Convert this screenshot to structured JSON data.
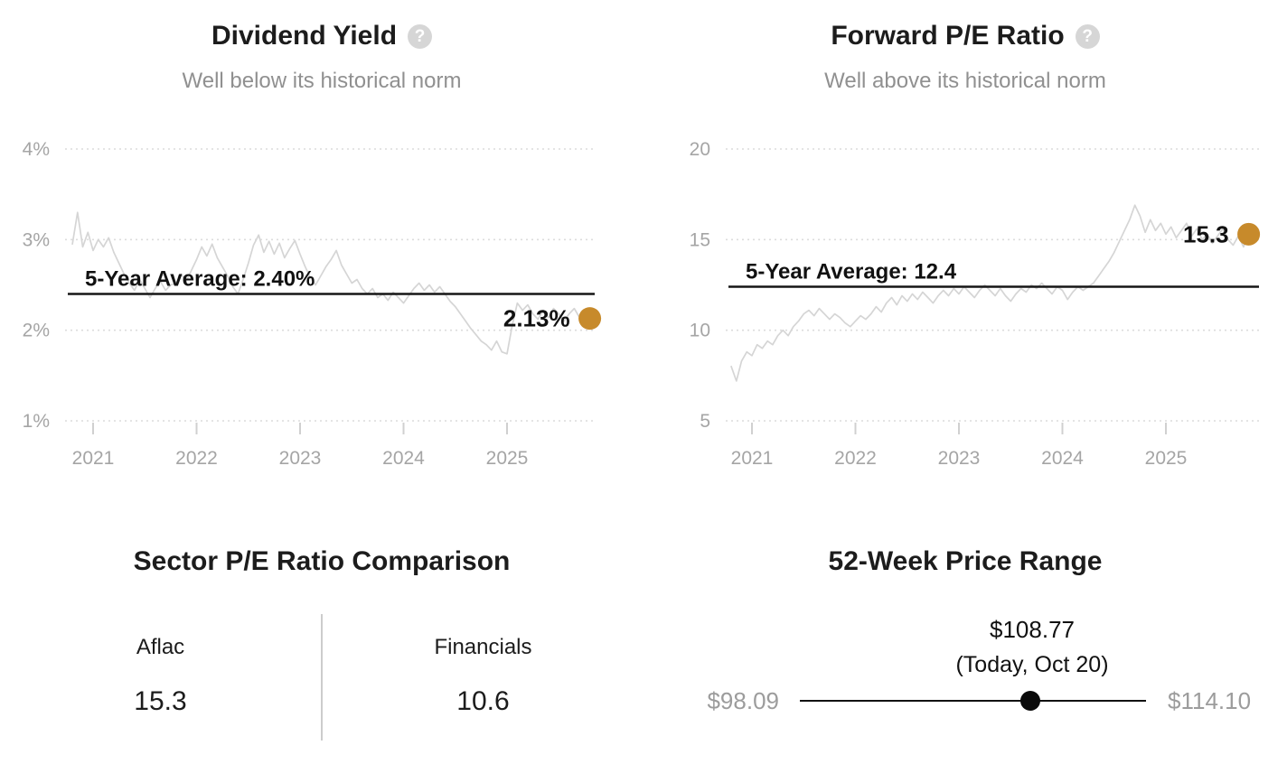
{
  "colors": {
    "accent_dot": "#c78a2b",
    "series_line": "#d5d5d5",
    "grid_line": "#dcdcdc",
    "axis_text": "#a5a5a5",
    "average_line": "#161616",
    "title_text": "#1c1c1c",
    "subtitle_text": "#909090",
    "help_icon_bg": "#d6d6d6",
    "range_label_gray": "#9c9c9c"
  },
  "panels": {
    "dividend_yield": {
      "title": "Dividend Yield",
      "help_icon": "?",
      "subtitle": "Well below its historical norm"
    },
    "forward_pe": {
      "title": "Forward P/E Ratio",
      "help_icon": "?",
      "subtitle": "Well above its historical norm"
    },
    "sector_comparison": {
      "title": "Sector P/E Ratio Comparison",
      "columns": [
        {
          "label": "Aflac",
          "value": "15.3"
        },
        {
          "label": "Financials",
          "value": "10.6"
        }
      ]
    },
    "price_range": {
      "title": "52-Week Price Range",
      "current_price": "$108.77",
      "current_note": "(Today, Oct 20)",
      "low": "$98.09",
      "high": "$114.10",
      "position_pct": 66.7
    }
  },
  "chart_data": [
    {
      "type": "line",
      "title": "Dividend Yield",
      "subtitle": "Well below its historical norm",
      "x_range": [
        2020.8,
        2025.8
      ],
      "x_ticks": [
        2021,
        2022,
        2023,
        2024,
        2025
      ],
      "y_ticks": [
        1,
        2,
        3,
        4
      ],
      "y_tick_labels": [
        "1%",
        "2%",
        "3%",
        "4%"
      ],
      "ylim": [
        1,
        4
      ],
      "grid": "horizontal-dotted",
      "legend": "none",
      "average_value": 2.4,
      "average_label": "5-Year Average: 2.40%",
      "current_value": 2.13,
      "current_label": "2.13%",
      "series": [
        {
          "name": "Dividend Yield (%)",
          "values": [
            2.95,
            3.3,
            2.92,
            3.08,
            2.88,
            3.0,
            2.92,
            3.02,
            2.86,
            2.74,
            2.62,
            2.52,
            2.44,
            2.56,
            2.46,
            2.36,
            2.46,
            2.54,
            2.44,
            2.5,
            2.52,
            2.62,
            2.54,
            2.66,
            2.78,
            2.92,
            2.82,
            2.95,
            2.8,
            2.7,
            2.6,
            2.48,
            2.4,
            2.56,
            2.74,
            2.94,
            3.05,
            2.86,
            2.98,
            2.84,
            2.96,
            2.8,
            2.9,
            2.99,
            2.84,
            2.7,
            2.58,
            2.5,
            2.6,
            2.7,
            2.78,
            2.88,
            2.72,
            2.62,
            2.52,
            2.56,
            2.46,
            2.4,
            2.46,
            2.36,
            2.4,
            2.33,
            2.42,
            2.36,
            2.3,
            2.38,
            2.46,
            2.52,
            2.44,
            2.5,
            2.42,
            2.48,
            2.4,
            2.32,
            2.26,
            2.18,
            2.1,
            2.02,
            1.95,
            1.88,
            1.84,
            1.78,
            1.88,
            1.76,
            1.74,
            2.05,
            2.3,
            2.22,
            2.28,
            2.18,
            2.12,
            2.22,
            2.14,
            2.24,
            2.18,
            2.1,
            2.18,
            2.24,
            2.14,
            2.2,
            2.13
          ]
        }
      ]
    },
    {
      "type": "line",
      "title": "Forward P/E Ratio",
      "subtitle": "Well above its historical norm",
      "x_range": [
        2020.8,
        2025.8
      ],
      "x_ticks": [
        2021,
        2022,
        2023,
        2024,
        2025
      ],
      "y_ticks": [
        5,
        10,
        15,
        20
      ],
      "y_tick_labels": [
        "5",
        "10",
        "15",
        "20"
      ],
      "ylim": [
        5,
        20
      ],
      "grid": "horizontal-dotted",
      "legend": "none",
      "average_value": 12.4,
      "average_label": "5-Year Average: 12.4",
      "current_value": 15.3,
      "current_label": "15.3",
      "series": [
        {
          "name": "Forward P/E",
          "values": [
            8.0,
            7.2,
            8.3,
            8.8,
            8.6,
            9.2,
            9.0,
            9.4,
            9.2,
            9.7,
            10.0,
            9.7,
            10.2,
            10.5,
            10.9,
            11.1,
            10.8,
            11.2,
            10.9,
            10.6,
            10.9,
            10.7,
            10.4,
            10.2,
            10.5,
            10.8,
            10.6,
            10.9,
            11.3,
            11.0,
            11.5,
            11.8,
            11.4,
            11.9,
            11.6,
            12.0,
            11.7,
            12.1,
            11.8,
            11.5,
            11.9,
            12.2,
            11.9,
            12.3,
            12.0,
            12.4,
            12.1,
            11.8,
            12.2,
            12.5,
            12.2,
            11.9,
            12.3,
            11.9,
            11.6,
            12.0,
            12.3,
            12.1,
            12.5,
            12.3,
            12.6,
            12.3,
            12.0,
            12.4,
            12.2,
            11.7,
            12.1,
            12.4,
            12.2,
            12.4,
            12.6,
            13.0,
            13.4,
            13.8,
            14.3,
            14.9,
            15.5,
            16.1,
            16.9,
            16.3,
            15.4,
            16.1,
            15.5,
            15.9,
            15.3,
            15.7,
            15.1,
            15.5,
            15.9,
            15.2,
            15.6,
            15.0,
            15.3,
            14.8,
            15.2,
            15.6,
            15.0,
            14.7,
            15.2,
            14.6,
            15.3
          ]
        }
      ]
    }
  ]
}
